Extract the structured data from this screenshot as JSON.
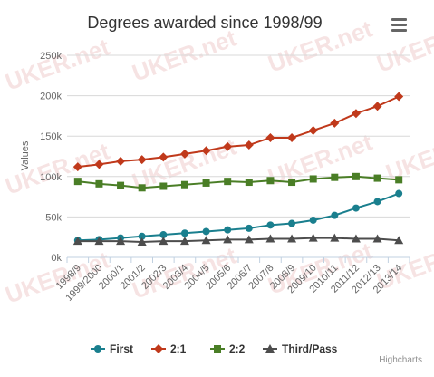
{
  "chart_data": {
    "type": "line",
    "title": "Degrees awarded since 1998/99",
    "ylabel": "Values",
    "ylim": [
      0,
      250000
    ],
    "yticks": [
      0,
      50000,
      100000,
      150000,
      200000,
      250000
    ],
    "ytick_labels": [
      "0k",
      "50k",
      "100k",
      "150k",
      "200k",
      "250k"
    ],
    "grid": true,
    "legend_position": "bottom-center",
    "categories": [
      "1998/9",
      "1999/2000",
      "2000/1",
      "2001/2",
      "2002/3",
      "2003/4",
      "2004/5",
      "2005/6",
      "2006/7",
      "2007/8",
      "2008/9",
      "2009/10",
      "2010/11",
      "2011/12",
      "2012/13",
      "2013/14"
    ],
    "series": [
      {
        "name": "First",
        "color": "#1a7f8e",
        "marker": "circle",
        "values": [
          21000,
          22000,
          24000,
          26000,
          28000,
          30000,
          32000,
          34000,
          36000,
          40000,
          42000,
          46000,
          52000,
          61000,
          69000,
          79000
        ]
      },
      {
        "name": "2:1",
        "color": "#c0391b",
        "marker": "diamond",
        "values": [
          112000,
          115000,
          119000,
          121000,
          124000,
          128000,
          132000,
          137000,
          139000,
          148000,
          148000,
          157000,
          166000,
          178000,
          187000,
          199000
        ]
      },
      {
        "name": "2:2",
        "color": "#4a7e26",
        "marker": "square",
        "values": [
          94000,
          91000,
          89000,
          86000,
          88000,
          90000,
          92000,
          94000,
          93000,
          95000,
          93000,
          97000,
          99000,
          100000,
          98000,
          96000
        ]
      },
      {
        "name": "Third/Pass",
        "color": "#4d4d4d",
        "marker": "triangle",
        "values": [
          20000,
          20000,
          20000,
          19000,
          20000,
          20000,
          21000,
          22000,
          22000,
          23000,
          23000,
          24000,
          24000,
          23000,
          23000,
          21000
        ]
      }
    ]
  },
  "watermark_text": "UKER.net",
  "menu_icon": "hamburger-menu-icon",
  "credits": "Highcharts"
}
